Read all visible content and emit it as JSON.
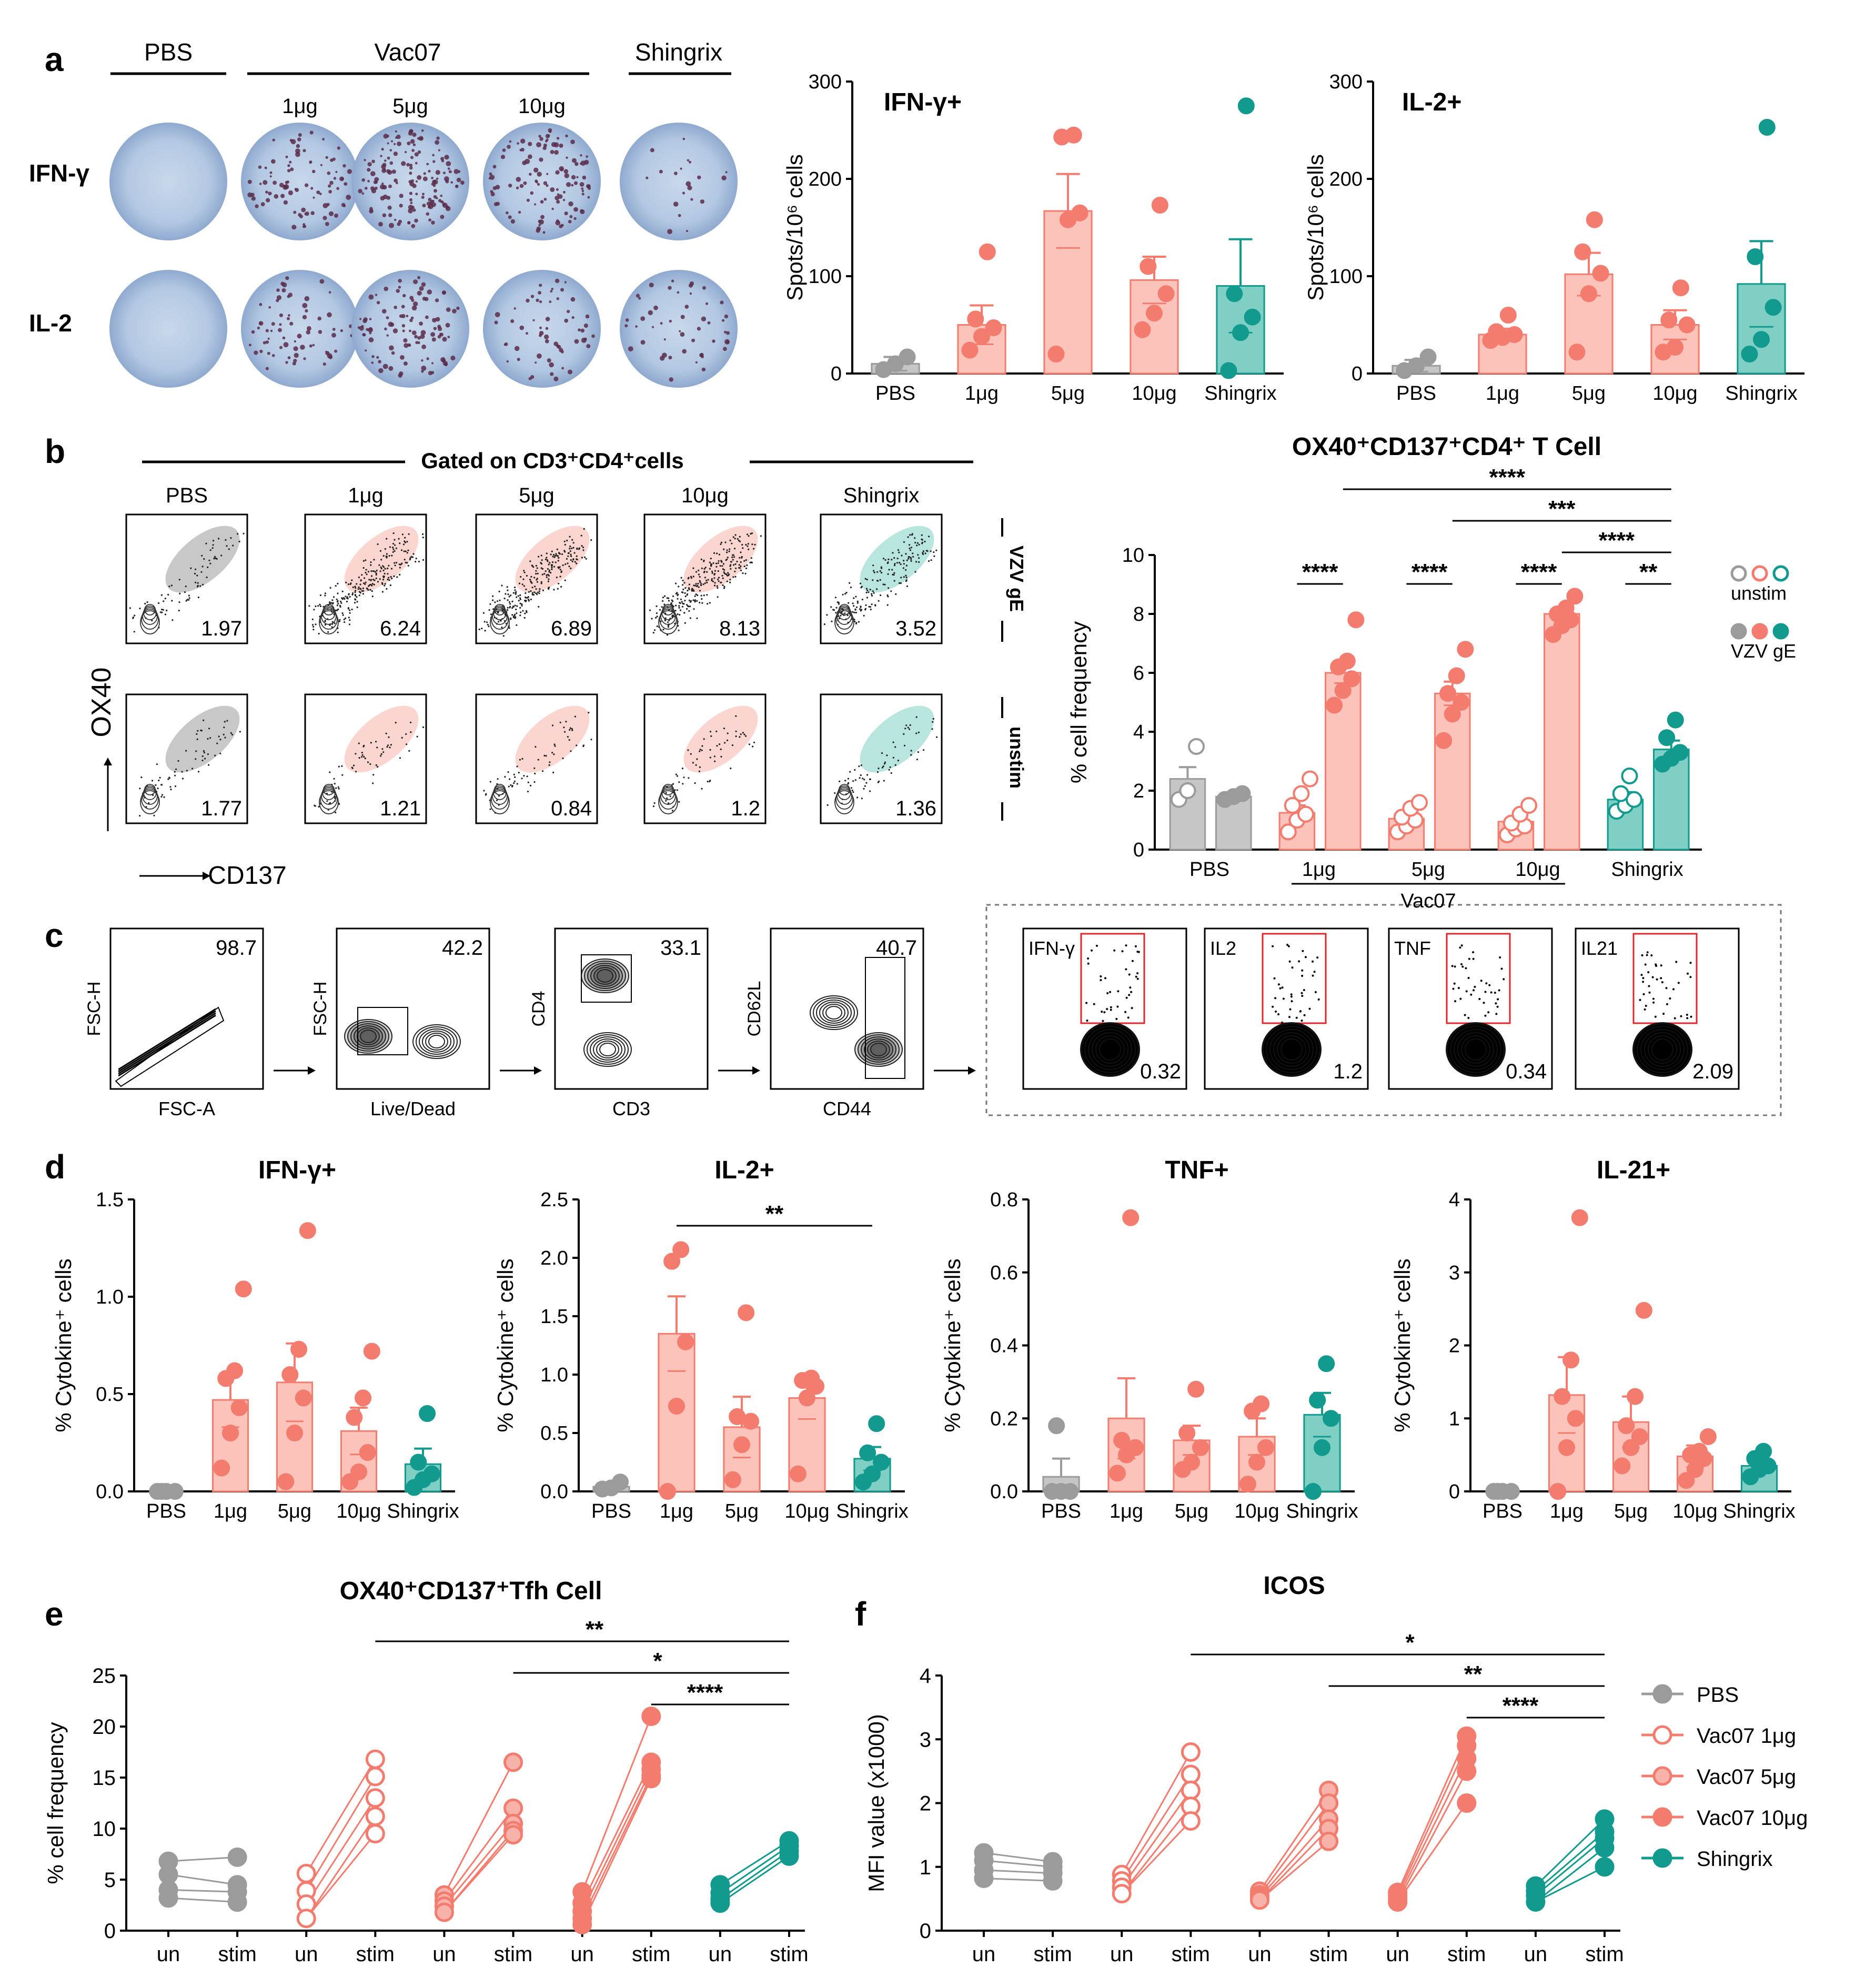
{
  "colors": {
    "pbs": "#9b9b9b",
    "vac": "#f47c6e",
    "vac_fill": "#fbc3ba",
    "vac_light": "#f7b3aa",
    "shingrix": "#129a8e",
    "shingrix_fill": "#7fcfc5",
    "well": "#b7cce5",
    "well_dark": "#7f9cc6",
    "spot": "#5a2b4a",
    "axis": "#000000",
    "gate_red": "#e0252b"
  },
  "panels": {
    "a": "a",
    "b": "b",
    "c": "c",
    "d": "d",
    "e": "e",
    "f": "f"
  },
  "panel_a": {
    "headers": {
      "pbs": "PBS",
      "vac07": "Vac07",
      "shingrix": "Shingrix"
    },
    "doses": [
      "1μg",
      "5μg",
      "10μg"
    ],
    "rows": [
      "IFN-γ",
      "IL-2"
    ]
  },
  "panel_b": {
    "gated_title": "Gated on CD3⁺CD4⁺cells",
    "columns": [
      "PBS",
      "1μg",
      "5μg",
      "10μg",
      "Shingrix"
    ],
    "row_labels": [
      "VZV gE",
      "unstim"
    ],
    "values_vzv": [
      "1.97",
      "6.24",
      "6.89",
      "8.13",
      "3.52"
    ],
    "values_unstim": [
      "1.77",
      "1.21",
      "0.84",
      "1.2",
      "1.36"
    ],
    "y_axis": "OX40",
    "x_axis": "CD137"
  },
  "panel_c": {
    "plots": [
      {
        "y": "FSC-H",
        "x": "FSC-A",
        "value": "98.7"
      },
      {
        "y": "FSC-H",
        "x": "Live/Dead",
        "value": "42.2"
      },
      {
        "y": "CD4",
        "x": "CD3",
        "value": "33.1"
      },
      {
        "y": "CD62L",
        "x": "CD44",
        "value": "40.7"
      }
    ],
    "cytokines": [
      {
        "label": "IFN-γ",
        "value": "0.32"
      },
      {
        "label": "IL2",
        "value": "1.2"
      },
      {
        "label": "TNF",
        "value": "0.34"
      },
      {
        "label": "IL21",
        "value": "2.09"
      }
    ]
  },
  "chart_data": [
    {
      "id": "a_ifng",
      "type": "bar",
      "title": "IFN-γ+",
      "ylabel": "Spots/10⁶ cells",
      "ylim": [
        0,
        300
      ],
      "yticks": [
        "0",
        "100",
        "200",
        "300"
      ],
      "categories": [
        "PBS",
        "1μg",
        "5μg",
        "10μg",
        "Shingrix"
      ],
      "means": [
        10,
        50,
        167,
        96,
        90
      ],
      "sem": [
        7,
        20,
        38,
        24,
        48
      ],
      "points": [
        [
          4,
          10,
          17
        ],
        [
          24,
          38,
          47,
          56,
          125
        ],
        [
          20,
          158,
          165,
          243,
          245
        ],
        [
          45,
          62,
          82,
          110,
          173
        ],
        [
          3,
          42,
          58,
          82,
          275
        ]
      ]
    },
    {
      "id": "a_il2",
      "type": "bar",
      "title": "IL-2+",
      "ylabel": "Spots/10⁶ cells",
      "ylim": [
        0,
        300
      ],
      "yticks": [
        "0",
        "100",
        "200",
        "300"
      ],
      "categories": [
        "PBS",
        "1μg",
        "5μg",
        "10μg",
        "Shingrix"
      ],
      "means": [
        8,
        40,
        102,
        50,
        92
      ],
      "sem": [
        6,
        6,
        22,
        15,
        44
      ],
      "points": [
        [
          3,
          8,
          17
        ],
        [
          34,
          37,
          40,
          43,
          60
        ],
        [
          22,
          82,
          103,
          125,
          158
        ],
        [
          22,
          27,
          50,
          55,
          88
        ],
        [
          20,
          35,
          68,
          120,
          253
        ]
      ]
    },
    {
      "id": "b_ox40",
      "type": "bar",
      "title": "OX40⁺CD137⁺CD4⁺ T Cell",
      "ylabel": "% cell frequency",
      "ylim": [
        0,
        10
      ],
      "yticks": [
        "0",
        "2",
        "4",
        "6",
        "8",
        "10"
      ],
      "categories": [
        "PBS",
        "1μg",
        "5μg",
        "10μg",
        "Shingrix"
      ],
      "group_label": "Vac07",
      "legend": [
        "unstim",
        "VZV gE"
      ],
      "means": [
        2.4,
        1.8,
        1.25,
        6.0,
        1.05,
        5.3,
        0.95,
        8.0,
        1.7,
        3.4
      ],
      "sem": [
        0.4,
        0.15,
        0.25,
        0.35,
        0.15,
        0.4,
        0.15,
        0.2,
        0.25,
        0.3
      ],
      "points": [
        [
          1.7,
          2.0,
          3.5
        ],
        [
          1.7,
          1.8,
          1.9
        ],
        [
          0.6,
          1.0,
          1.2,
          1.5,
          1.9,
          2.4
        ],
        [
          4.9,
          5.4,
          5.8,
          6.2,
          6.4,
          7.8
        ],
        [
          0.6,
          0.8,
          1.0,
          1.1,
          1.4,
          1.6
        ],
        [
          3.7,
          4.6,
          5.0,
          5.3,
          5.9,
          6.8
        ],
        [
          0.5,
          0.7,
          0.8,
          0.9,
          1.2,
          1.5
        ],
        [
          7.3,
          7.6,
          7.8,
          8.0,
          8.2,
          8.6
        ],
        [
          1.3,
          1.5,
          1.7,
          1.9,
          2.5
        ],
        [
          2.9,
          3.1,
          3.3,
          3.8,
          4.4
        ]
      ],
      "significance": [
        {
          "from": 1,
          "to": 4,
          "label": "****",
          "level": 1
        },
        {
          "from": 2,
          "to": 4,
          "label": "***",
          "level": 2
        },
        {
          "from": 3,
          "to": 4,
          "label": "****",
          "level": 3
        },
        {
          "within": 0,
          "label": "****"
        },
        {
          "within": 1,
          "label": "****"
        },
        {
          "within": 2,
          "label": "****"
        },
        {
          "within": 3,
          "label": "**"
        }
      ]
    },
    {
      "id": "d_ifng",
      "type": "bar",
      "title": "IFN-γ+",
      "ylabel": "% Cytokine⁺ cells",
      "ylim": [
        0,
        1.5
      ],
      "yticks": [
        "0.0",
        "0.5",
        "1.0",
        "1.5"
      ],
      "categories": [
        "PBS",
        "1μg",
        "5μg",
        "10μg",
        "Shingrix"
      ],
      "means": [
        0,
        0.47,
        0.56,
        0.31,
        0.14
      ],
      "sem": [
        0,
        0.14,
        0.2,
        0.12,
        0.08
      ],
      "points": [
        [
          0,
          0,
          0,
          0
        ],
        [
          0.12,
          0.3,
          0.43,
          0.58,
          0.62,
          1.04
        ],
        [
          0.05,
          0.3,
          0.48,
          0.6,
          0.73,
          1.34
        ],
        [
          0.05,
          0.1,
          0.2,
          0.38,
          0.48,
          0.72
        ],
        [
          0.02,
          0.06,
          0.09,
          0.15,
          0.4
        ]
      ]
    },
    {
      "id": "d_il2",
      "type": "bar",
      "title": "IL-2+",
      "ylabel": "% Cytokine⁺ cells",
      "ylim": [
        0,
        2.5
      ],
      "yticks": [
        "0.0",
        "0.5",
        "1.0",
        "1.5",
        "2.0",
        "2.5"
      ],
      "categories": [
        "PBS",
        "1μg",
        "5μg",
        "10μg",
        "Shingrix"
      ],
      "means": [
        0.04,
        1.35,
        0.55,
        0.8,
        0.28
      ],
      "sem": [
        0.02,
        0.32,
        0.26,
        0.18,
        0.1
      ],
      "points": [
        [
          0.02,
          0.03,
          0.08
        ],
        [
          0,
          0.73,
          1.28,
          1.97,
          2.07
        ],
        [
          0.1,
          0.4,
          0.6,
          0.64,
          1.53
        ],
        [
          0.15,
          0.8,
          0.9,
          0.95,
          0.97
        ],
        [
          0.08,
          0.15,
          0.25,
          0.33,
          0.58
        ]
      ],
      "significance": [
        {
          "from": 1,
          "to": 4,
          "label": "**",
          "level": 1
        }
      ]
    },
    {
      "id": "d_tnf",
      "type": "bar",
      "title": "TNF+",
      "ylabel": "% Cytokine⁺ cells",
      "ylim": [
        0,
        0.8
      ],
      "yticks": [
        "0.0",
        "0.2",
        "0.4",
        "0.6",
        "0.8"
      ],
      "categories": [
        "PBS",
        "1μg",
        "5μg",
        "10μg",
        "Shingrix"
      ],
      "means": [
        0.04,
        0.2,
        0.14,
        0.15,
        0.21
      ],
      "sem": [
        0.05,
        0.11,
        0.04,
        0.05,
        0.06
      ],
      "points": [
        [
          0,
          0,
          0,
          0.18
        ],
        [
          0.05,
          0.1,
          0.12,
          0.14,
          0.75
        ],
        [
          0.06,
          0.08,
          0.12,
          0.16,
          0.28
        ],
        [
          0.02,
          0.08,
          0.12,
          0.22,
          0.24
        ],
        [
          0,
          0.12,
          0.2,
          0.25,
          0.35
        ]
      ]
    },
    {
      "id": "d_il21",
      "type": "bar",
      "title": "IL-21+",
      "ylabel": "% Cytokine⁺ cells",
      "ylim": [
        0,
        4
      ],
      "yticks": [
        "0",
        "1",
        "2",
        "3",
        "4"
      ],
      "categories": [
        "PBS",
        "1μg",
        "5μg",
        "10μg",
        "Shingrix"
      ],
      "means": [
        0,
        1.32,
        0.95,
        0.48,
        0.35
      ],
      "sem": [
        0,
        0.52,
        0.35,
        0.15,
        0.07
      ],
      "points": [
        [
          0,
          0,
          0,
          0
        ],
        [
          0,
          0.6,
          1.0,
          1.3,
          1.8,
          3.75
        ],
        [
          0.35,
          0.6,
          0.75,
          0.9,
          1.3,
          2.48
        ],
        [
          0.15,
          0.3,
          0.45,
          0.5,
          0.55,
          0.75
        ],
        [
          0.2,
          0.3,
          0.35,
          0.45,
          0.55
        ]
      ]
    },
    {
      "id": "e_tfh",
      "type": "line",
      "title": "OX40⁺CD137⁺Tfh Cell",
      "ylabel": "% cell frequency",
      "ylim": [
        0,
        25
      ],
      "yticks": [
        "0",
        "5",
        "10",
        "15",
        "20",
        "25"
      ],
      "xticks": [
        "un",
        "stim",
        "un",
        "stim",
        "un",
        "stim",
        "un",
        "stim",
        "un",
        "stim"
      ],
      "groups": [
        {
          "name": "PBS",
          "un": [
            6.8,
            5.5,
            4.0,
            3.2
          ],
          "stim": [
            7.2,
            4.5,
            3.8,
            2.8
          ]
        },
        {
          "name": "Vac07 1μg",
          "un": [
            5.6,
            3.9,
            2.6,
            1.2
          ],
          "stim": [
            16.8,
            15.1,
            13.0,
            11.2,
            9.5
          ]
        },
        {
          "name": "Vac07 5μg",
          "un": [
            3.5,
            2.9,
            2.4,
            1.8
          ],
          "stim": [
            16.5,
            12.0,
            10.5,
            9.8,
            9.4
          ]
        },
        {
          "name": "Vac07 10μg",
          "un": [
            3.8,
            2.7,
            1.9,
            1.2,
            0.6
          ],
          "stim": [
            21.0,
            16.5,
            15.8,
            15.2,
            14.9
          ]
        },
        {
          "name": "Shingrix",
          "un": [
            4.5,
            3.7,
            3.1,
            2.7
          ],
          "stim": [
            8.8,
            8.3,
            7.8,
            7.3
          ]
        }
      ],
      "significance": [
        {
          "label": "**",
          "level": 1,
          "from": 1
        },
        {
          "label": "*",
          "level": 2,
          "from": 2
        },
        {
          "label": "****",
          "level": 3,
          "from": 3
        }
      ]
    },
    {
      "id": "f_icos",
      "type": "line",
      "title": "ICOS",
      "ylabel": "MFI value (x1000)",
      "ylim": [
        0,
        4
      ],
      "yticks": [
        "0",
        "1",
        "2",
        "3",
        "4"
      ],
      "xticks": [
        "un",
        "stim",
        "un",
        "stim",
        "un",
        "stim",
        "un",
        "stim",
        "un",
        "stim"
      ],
      "groups": [
        {
          "name": "PBS",
          "un": [
            1.22,
            1.1,
            0.95,
            0.82
          ],
          "stim": [
            1.08,
            1.0,
            0.9,
            0.78
          ]
        },
        {
          "name": "Vac07 1μg",
          "un": [
            0.88,
            0.78,
            0.68,
            0.58
          ],
          "stim": [
            2.8,
            2.45,
            2.2,
            1.95,
            1.72
          ]
        },
        {
          "name": "Vac07 5μg",
          "un": [
            0.62,
            0.56,
            0.52,
            0.48
          ],
          "stim": [
            2.2,
            2.0,
            1.75,
            1.6,
            1.4
          ]
        },
        {
          "name": "Vac07 10μg",
          "un": [
            0.6,
            0.55,
            0.5,
            0.45
          ],
          "stim": [
            3.05,
            2.9,
            2.7,
            2.5,
            2.0
          ]
        },
        {
          "name": "Shingrix",
          "un": [
            0.7,
            0.62,
            0.55,
            0.45
          ],
          "stim": [
            1.75,
            1.55,
            1.45,
            1.3,
            1.0
          ]
        }
      ],
      "significance": [
        {
          "label": "*",
          "level": 1,
          "from": 1
        },
        {
          "label": "**",
          "level": 2,
          "from": 2
        },
        {
          "label": "****",
          "level": 3,
          "from": 3
        }
      ]
    }
  ],
  "legend_f": [
    "PBS",
    "Vac07 1μg",
    "Vac07 5μg",
    "Vac07 10μg",
    "Shingrix"
  ]
}
